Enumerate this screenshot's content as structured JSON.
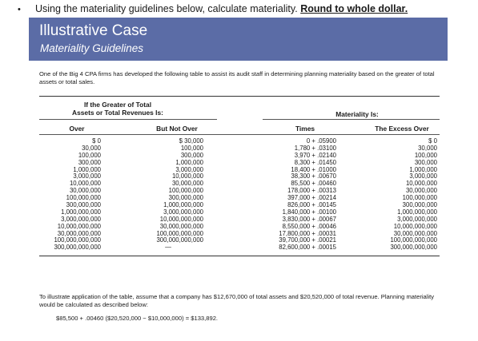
{
  "instruction": {
    "bullet": "•",
    "plain": "Using the materiality guidelines below, calculate materiality. ",
    "emphasis": "Round to whole dollar."
  },
  "banner": {
    "title": "Illustrative Case",
    "subtitle": "Materiality Guidelines",
    "color": "#5b6ca6"
  },
  "intro_text": "One of the Big 4 CPA firms has developed the following table to assist its audit staff in determining planning materiality based on the greater of total assets or total sales.",
  "table": {
    "group_header_left_line1": "If the Greater of Total",
    "group_header_left_line2": "Assets or Total Revenues Is:",
    "group_header_right": "Materiality Is:",
    "columns": [
      "Over",
      "But Not Over",
      "Times",
      "The Excess Over"
    ],
    "over": [
      "$ 0",
      "30,000",
      "100,000",
      "300,000",
      "1,000,000",
      "3,000,000",
      "10,000,000",
      "30,000,000",
      "100,000,000",
      "300,000,000",
      "1,000,000,000",
      "3,000,000,000",
      "10,000,000,000",
      "30,000,000,000",
      "100,000,000,000",
      "300,000,000,000"
    ],
    "but_not_over": [
      "$ 30,000",
      "100,000",
      "300,000",
      "1,000,000",
      "3,000,000",
      "10,000,000",
      "30,000,000",
      "100,000,000",
      "300,000,000",
      "1,000,000,000",
      "3,000,000,000",
      "10,000,000,000",
      "30,000,000,000",
      "100,000,000,000",
      "300,000,000,000",
      "—"
    ],
    "times": [
      "0 + .05900",
      "1,780 + .03100",
      "3,970 + .02140",
      "8,300 + .01450",
      "18,400 + .01000",
      "38,300 + .00670",
      "85,500 + .00460",
      "178,000 + .00313",
      "397,000 + .00214",
      "826,000 + .00145",
      "1,840,000 + .00100",
      "3,830,000 + .00067",
      "8,550,000 + .00046",
      "17,800,000 + .00031",
      "39,700,000 + .00021",
      "82,600,000 + .00015"
    ],
    "excess_over": [
      "$ 0",
      "30,000",
      "100,000",
      "300,000",
      "1,000,000",
      "3,000,000",
      "10,000,000",
      "30,000,000",
      "100,000,000",
      "300,000,000",
      "1,000,000,000",
      "3,000,000,000",
      "10,000,000,000",
      "30,000,000,000",
      "100,000,000,000",
      "300,000,000,000"
    ]
  },
  "closing_text": "To illustrate application of the table, assume that a company has $12,670,000 of total assets and $20,520,000 of total revenue. Planning materiality would be calculated as described below:",
  "example_calc": "$85,500 + .00460 ($20,520,000 − $10,000,000) = $133,892."
}
